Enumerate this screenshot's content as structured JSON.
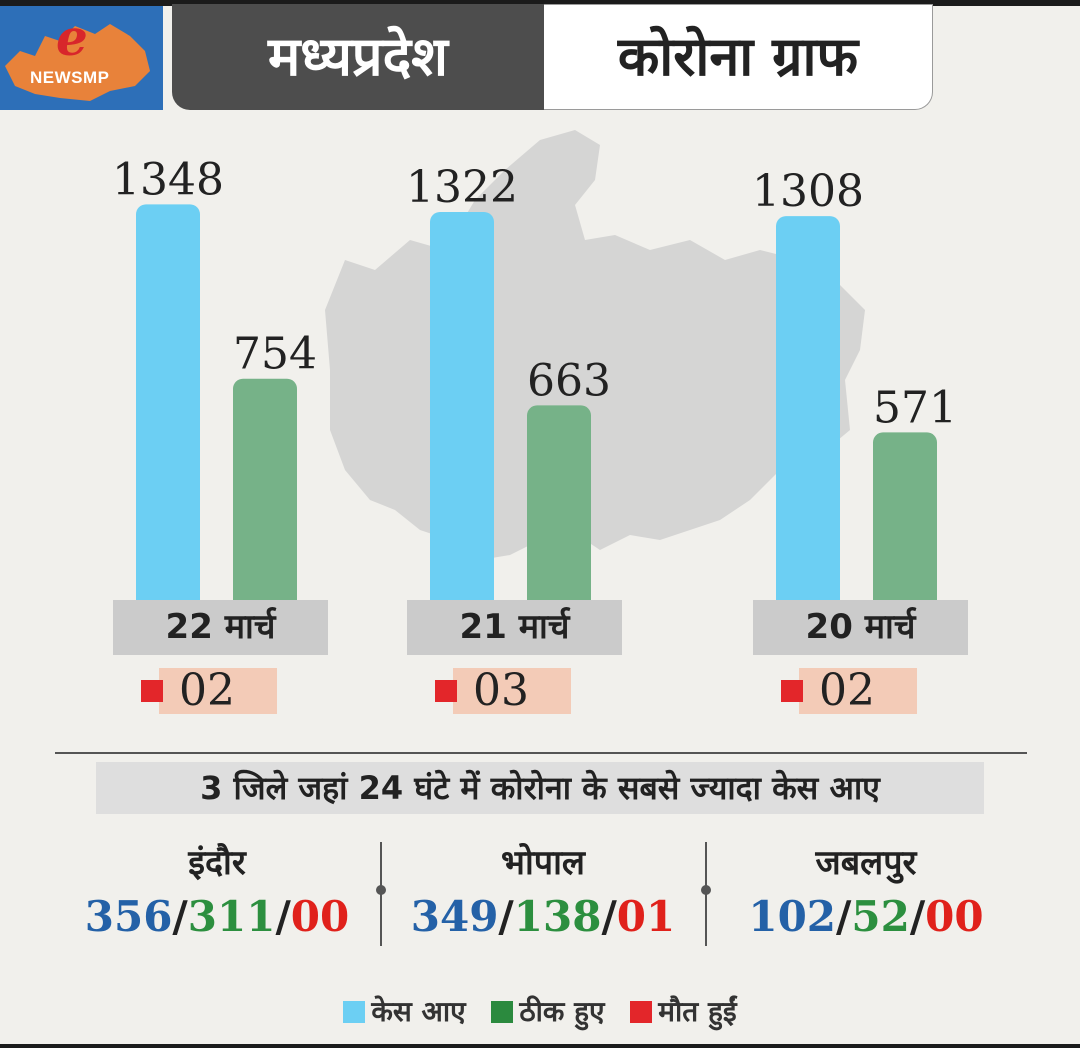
{
  "logo": {
    "letter": "e",
    "text": "NEWSMP"
  },
  "header": {
    "title_left": "मध्यप्रदेश",
    "title_right": "कोरोना ग्राफ"
  },
  "colors": {
    "cases": "#6ccff3",
    "recovered": "#76b288",
    "deaths": "#e3262a"
  },
  "chart_data": {
    "type": "bar",
    "categories": [
      "22 मार्च",
      "21 मार्च",
      "20 मार्च"
    ],
    "series": [
      {
        "name": "केस आए",
        "values": [
          1348,
          1322,
          1308
        ]
      },
      {
        "name": "ठीक हुए",
        "values": [
          754,
          663,
          571
        ]
      },
      {
        "name": "मौत हुईं",
        "values": [
          2,
          3,
          2
        ]
      }
    ],
    "value_labels": {
      "cases": [
        "1348",
        "1322",
        "1308"
      ],
      "recovered": [
        "754",
        "663",
        "571"
      ],
      "deaths": [
        "02",
        "03",
        "02"
      ]
    },
    "legend_position": "bottom"
  },
  "districts": {
    "title": "3 जिले जहां 24 घंटे में कोरोना के सबसे ज्यादा केस आए",
    "items": [
      {
        "name": "इंदौर",
        "cases": "356",
        "recovered": "311",
        "deaths": "00"
      },
      {
        "name": "भोपाल",
        "cases": "349",
        "recovered": "138",
        "deaths": "01"
      },
      {
        "name": "जबलपुर",
        "cases": "102",
        "recovered": "52",
        "deaths": "00"
      }
    ]
  },
  "legend": {
    "cases": "केस आए",
    "recovered": "ठीक हुए",
    "deaths": "मौत हुईं"
  }
}
